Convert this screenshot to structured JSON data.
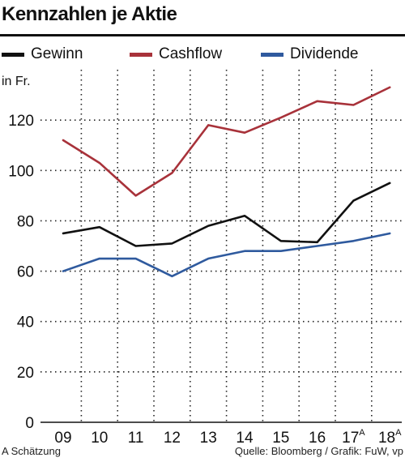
{
  "chart_data": {
    "type": "line",
    "title": "Kennzahlen je Aktie",
    "unit_label": "in Fr.",
    "categories": [
      "09",
      "10",
      "11",
      "12",
      "13",
      "14",
      "15",
      "16",
      "17",
      "18"
    ],
    "category_superscripts": [
      "",
      "",
      "",
      "",
      "",
      "",
      "",
      "",
      "A",
      "A"
    ],
    "ylim": [
      0,
      140
    ],
    "yticks": [
      0,
      20,
      40,
      60,
      80,
      100,
      120
    ],
    "grid": true,
    "legend_position": "top",
    "series": [
      {
        "name": "Gewinn",
        "color": "#111111",
        "values": [
          75,
          77.5,
          70,
          71,
          78,
          82,
          72,
          71.5,
          88,
          95
        ]
      },
      {
        "name": "Cashflow",
        "color": "#a8323a",
        "values": [
          112,
          103,
          90,
          99,
          118,
          115,
          121,
          127.5,
          126,
          133
        ]
      },
      {
        "name": "Dividende",
        "color": "#2f5a9e",
        "values": [
          60,
          65,
          65,
          58,
          65,
          68,
          68,
          70,
          72,
          75
        ]
      }
    ]
  },
  "footnote": "A Schätzung",
  "source": "Quelle: Bloomberg / Grafik: FuW, vp"
}
